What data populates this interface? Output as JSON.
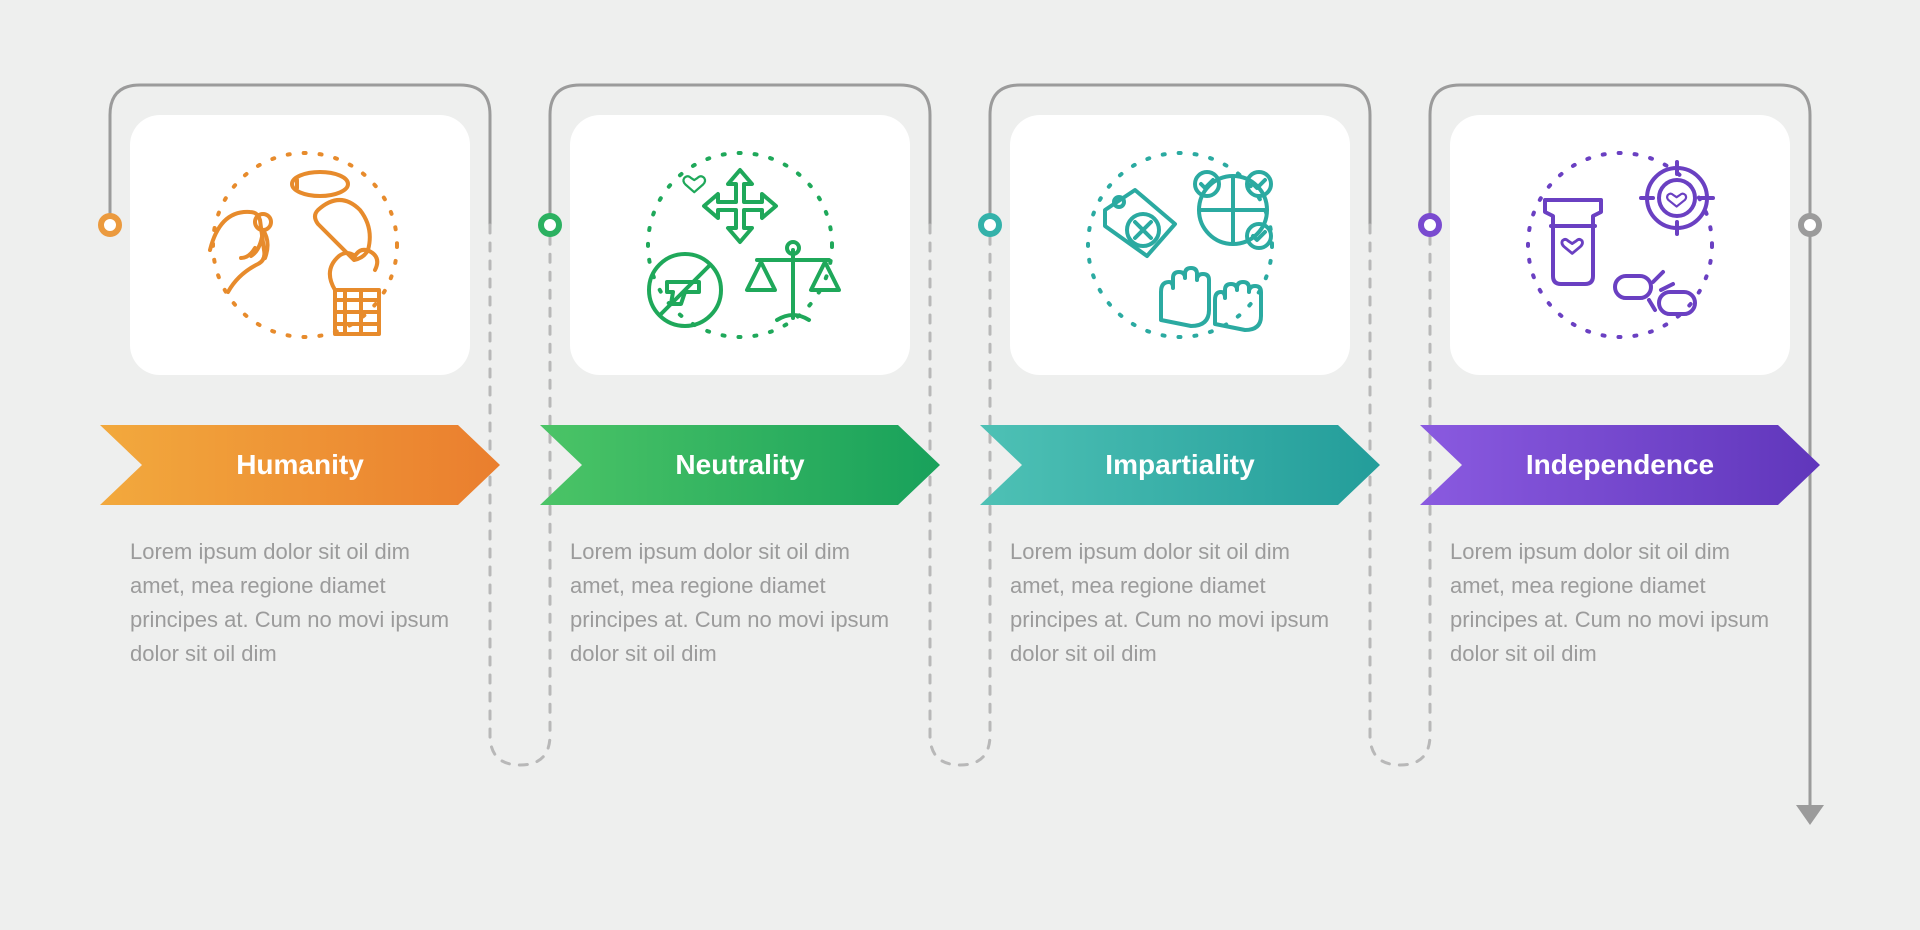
{
  "type": "infographic",
  "background_color": "#eeefee",
  "card_bg": "#ffffff",
  "connector": {
    "solid_color": "#9b9b9b",
    "dashed_color": "#b8b8b8",
    "stroke_width": 3,
    "dash": "8 10",
    "arrowhead_color": "#9b9b9b"
  },
  "desc_color": "#9b9b9b",
  "desc_fontsize": 22,
  "arrow_label_fontsize": 28,
  "steps": [
    {
      "label": "Humanity",
      "icon_name": "humanity-icon",
      "icon_color": "#e78b2c",
      "dot_color": "#eb9a3e",
      "gradient_from": "#f2a93d",
      "gradient_to": "#ea7e2e",
      "desc": "Lorem ipsum dolor sit oil dim amet, mea regione diamet principes at. Cum no movi ipsum dolor sit oil dim"
    },
    {
      "label": "Neutrality",
      "icon_name": "neutrality-icon",
      "icon_color": "#1fa85a",
      "dot_color": "#2cb161",
      "gradient_from": "#4bc466",
      "gradient_to": "#18a15b",
      "desc": "Lorem ipsum dolor sit oil dim amet, mea regione diamet principes at. Cum no movi ipsum dolor sit oil dim"
    },
    {
      "label": "Impartiality",
      "icon_name": "impartiality-icon",
      "icon_color": "#2baaa1",
      "dot_color": "#34b2aa",
      "gradient_from": "#4ec1b5",
      "gradient_to": "#239d9a",
      "desc": "Lorem ipsum dolor sit oil dim amet, mea regione diamet principes at. Cum no movi ipsum dolor sit oil dim"
    },
    {
      "label": "Independence",
      "icon_name": "independence-icon",
      "icon_color": "#6a40c2",
      "dot_color": "#7a4bd0",
      "gradient_from": "#8a5ae0",
      "gradient_to": "#6036bb",
      "desc": "Lorem ipsum dolor sit oil dim amet, mea regione diamet principes at. Cum no movi ipsum dolor sit oil dim"
    }
  ],
  "end_dot_color": "#9b9b9b"
}
